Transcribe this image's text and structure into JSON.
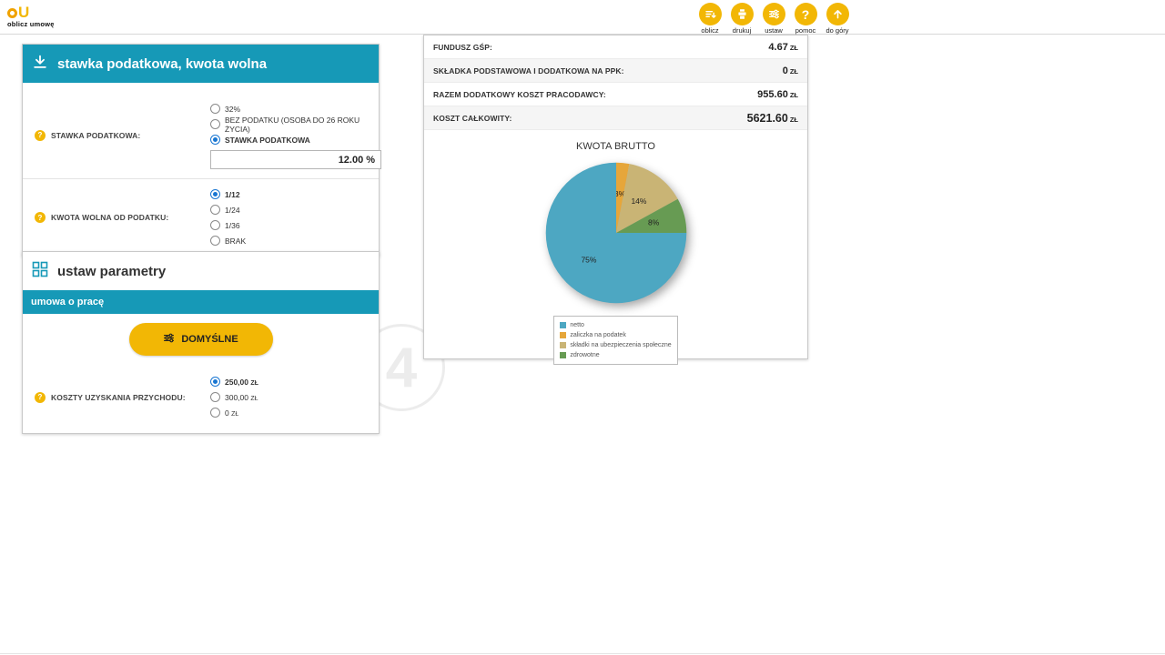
{
  "colors": {
    "teal": "#1699b7",
    "yellow": "#f2b705",
    "radio_selected": "#1976d2"
  },
  "topbar": {
    "logo_text": "oblicz umowę",
    "actions": [
      {
        "label": "oblicz",
        "icon": "sort-list-icon"
      },
      {
        "label": "drukuj",
        "icon": "printer-icon"
      },
      {
        "label": "ustaw",
        "icon": "sliders-icon"
      },
      {
        "label": "pomoc",
        "icon": "question-icon"
      },
      {
        "label": "do góry",
        "icon": "arrow-up-icon"
      }
    ]
  },
  "tax_card": {
    "title": "stawka podatkowa, kwota wolna",
    "rate": {
      "label": "STAWKA PODATKOWA:",
      "options": [
        {
          "label": "32%",
          "selected": false
        },
        {
          "label": "BEZ PODATKU (OSOBA DO 26 ROKU ŻYCIA)",
          "selected": false
        },
        {
          "label": "STAWKA PODATKOWA",
          "selected": true
        }
      ],
      "value": "12.00",
      "unit": "%"
    },
    "allowance": {
      "label": "KWOTA WOLNA OD PODATKU:",
      "options": [
        {
          "label": "1/12",
          "selected": true
        },
        {
          "label": "1/24",
          "selected": false
        },
        {
          "label": "1/36",
          "selected": false
        },
        {
          "label": "BRAK",
          "selected": false
        }
      ]
    }
  },
  "params_card": {
    "title": "ustaw parametry",
    "contract_tab": "umowa o pracę",
    "default_button": "DOMYŚLNE",
    "costs": {
      "label": "KOSZTY UZYSKANIA PRZYCHODU:",
      "options": [
        {
          "label": "250,00",
          "unit": "ZŁ",
          "selected": true
        },
        {
          "label": "300,00",
          "unit": "ZŁ",
          "selected": false
        },
        {
          "label": "0",
          "unit": "ZŁ",
          "selected": false
        }
      ]
    }
  },
  "results": {
    "rows": [
      {
        "label": "FUNDUSZ GŚP:",
        "value": "4.67",
        "unit": "ZŁ"
      },
      {
        "label": "SKŁADKA PODSTAWOWA I DODATKOWA NA PPK:",
        "value": "0",
        "unit": "ZŁ"
      },
      {
        "label": "RAZEM DODATKOWY KOSZT PRACODAWCY:",
        "value": "955.60",
        "unit": "ZŁ"
      },
      {
        "label": "KOSZT CAŁKOWITY:",
        "value": "5621.60",
        "unit": "ZŁ"
      }
    ]
  },
  "chart_data": {
    "type": "pie",
    "title": "KWOTA BRUTTO",
    "direction": "clockwise",
    "start_angle_deg": 0,
    "slices": [
      {
        "label": "zaliczka na podatek",
        "value": 3,
        "display": "3%",
        "color": "#e6a63a"
      },
      {
        "label": "składki na ubezpieczenia społeczne",
        "value": 14,
        "display": "14%",
        "color": "#c9b475"
      },
      {
        "label": "zdrowotne",
        "value": 8,
        "display": "8%",
        "color": "#679b53"
      },
      {
        "label": "netto",
        "value": 75,
        "display": "75%",
        "color": "#4da7c2"
      }
    ],
    "legend": [
      {
        "label": "netto",
        "color": "#4da7c2"
      },
      {
        "label": "zaliczka na podatek",
        "color": "#e6a63a"
      },
      {
        "label": "składki na ubezpieczenia społeczne",
        "color": "#c9b475"
      },
      {
        "label": "zdrowotne",
        "color": "#679b53"
      }
    ]
  },
  "watermark": {
    "text": "4"
  }
}
